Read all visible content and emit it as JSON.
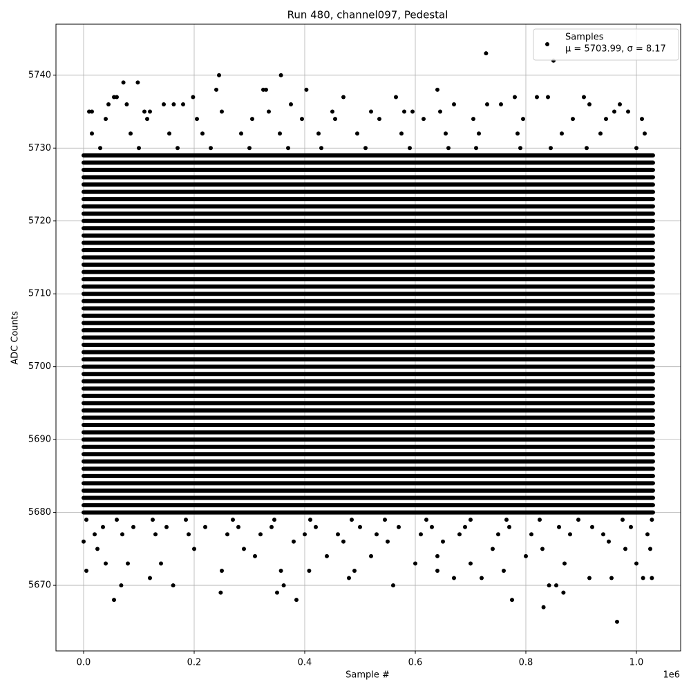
{
  "chart_data": {
    "type": "scatter",
    "title": "Run 480, channel097, Pedestal",
    "x_label": "Sample #",
    "y_label": "ADC Counts",
    "x_offset_label": "1e6",
    "xlim": [
      -50000,
      1080000
    ],
    "ylim": [
      5661,
      5747
    ],
    "xticks": [
      {
        "value": 0,
        "label": "0.0"
      },
      {
        "value": 200000,
        "label": "0.2"
      },
      {
        "value": 400000,
        "label": "0.4"
      },
      {
        "value": 600000,
        "label": "0.6"
      },
      {
        "value": 800000,
        "label": "0.8"
      },
      {
        "value": 1000000,
        "label": "1.0"
      }
    ],
    "yticks": [
      5670,
      5680,
      5690,
      5700,
      5710,
      5720,
      5730,
      5740
    ],
    "grid": true,
    "legend": "upper right",
    "series": [
      {
        "name": "Samples",
        "note": "μ = 5703.99, σ = 8.17",
        "color": "#000000",
        "dense_x": [
          0,
          1030000
        ],
        "dense_y": [
          5680,
          5681,
          5682,
          5683,
          5684,
          5685,
          5686,
          5687,
          5688,
          5689,
          5690,
          5691,
          5692,
          5693,
          5694,
          5695,
          5696,
          5697,
          5698,
          5699,
          5700,
          5701,
          5702,
          5703,
          5704,
          5705,
          5706,
          5707,
          5708,
          5709,
          5710,
          5711,
          5712,
          5713,
          5714,
          5715,
          5716,
          5717,
          5718,
          5719,
          5720,
          5721,
          5722,
          5723,
          5724,
          5725,
          5726,
          5727,
          5728,
          5729
        ],
        "x": [
          728000,
          245000,
          357000,
          72000,
          98000,
          240000,
          325000,
          330000,
          403000,
          640000,
          55000,
          60000,
          198000,
          470000,
          565000,
          780000,
          820000,
          840000,
          905000,
          850000,
          45000,
          78000,
          145000,
          163000,
          180000,
          375000,
          670000,
          730000,
          755000,
          915000,
          970000,
          10000,
          15000,
          110000,
          120000,
          250000,
          335000,
          450000,
          520000,
          580000,
          595000,
          645000,
          960000,
          985000,
          965000,
          832000,
          55000,
          385000,
          775000,
          248000,
          350000,
          868000,
          68000,
          162000,
          362000,
          560000,
          842000,
          855000,
          5000,
          250000,
          357000,
          640000,
          408000,
          490000,
          915000,
          955000,
          1012000,
          1028000,
          120000,
          480000,
          670000,
          720000,
          600000,
          700000,
          760000,
          870000,
          1000000,
          40000,
          80000,
          140000,
          310000,
          440000,
          520000,
          640000,
          800000,
          980000,
          0,
          25000,
          200000,
          290000,
          380000,
          470000,
          550000,
          650000,
          740000,
          830000,
          950000,
          1025000,
          20000,
          70000,
          130000,
          190000,
          260000,
          320000,
          400000,
          460000,
          530000,
          610000,
          680000,
          750000,
          810000,
          880000,
          940000,
          1020000,
          35000,
          90000,
          150000,
          220000,
          280000,
          340000,
          420000,
          500000,
          570000,
          630000,
          690000,
          770000,
          860000,
          920000,
          990000,
          5000,
          60000,
          125000,
          185000,
          270000,
          345000,
          410000,
          485000,
          545000,
          620000,
          700000,
          765000,
          825000,
          895000,
          975000,
          1028000,
          30000,
          100000,
          170000,
          230000,
          300000,
          370000,
          430000,
          510000,
          590000,
          660000,
          710000,
          790000,
          845000,
          910000,
          1000000,
          15000,
          85000,
          155000,
          215000,
          285000,
          355000,
          425000,
          495000,
          575000,
          655000,
          715000,
          785000,
          865000,
          935000,
          1015000,
          40000,
          115000,
          205000,
          305000,
          395000,
          455000,
          535000,
          615000,
          705000,
          795000,
          885000,
          945000,
          1010000
        ],
        "y": [
          5743,
          5740,
          5740,
          5739,
          5739,
          5738,
          5738,
          5738,
          5738,
          5738,
          5737,
          5737,
          5737,
          5737,
          5737,
          5737,
          5737,
          5737,
          5737,
          5742,
          5736,
          5736,
          5736,
          5736,
          5736,
          5736,
          5736,
          5736,
          5736,
          5736,
          5736,
          5735,
          5735,
          5735,
          5735,
          5735,
          5735,
          5735,
          5735,
          5735,
          5735,
          5735,
          5735,
          5735,
          5665,
          5667,
          5668,
          5668,
          5668,
          5669,
          5669,
          5669,
          5670,
          5670,
          5670,
          5670,
          5670,
          5670,
          5672,
          5672,
          5672,
          5672,
          5672,
          5672,
          5671,
          5671,
          5671,
          5671,
          5671,
          5671,
          5671,
          5671,
          5673,
          5673,
          5672,
          5673,
          5673,
          5673,
          5673,
          5673,
          5674,
          5674,
          5674,
          5674,
          5674,
          5675,
          5676,
          5675,
          5675,
          5675,
          5676,
          5676,
          5676,
          5676,
          5675,
          5675,
          5676,
          5675,
          5677,
          5677,
          5677,
          5677,
          5677,
          5677,
          5677,
          5677,
          5677,
          5677,
          5677,
          5677,
          5677,
          5677,
          5677,
          5677,
          5678,
          5678,
          5678,
          5678,
          5678,
          5678,
          5678,
          5678,
          5678,
          5678,
          5678,
          5678,
          5678,
          5678,
          5678,
          5679,
          5679,
          5679,
          5679,
          5679,
          5679,
          5679,
          5679,
          5679,
          5679,
          5679,
          5679,
          5679,
          5679,
          5679,
          5679,
          5730,
          5730,
          5730,
          5730,
          5730,
          5730,
          5730,
          5730,
          5730,
          5730,
          5730,
          5730,
          5730,
          5730,
          5730,
          5732,
          5732,
          5732,
          5732,
          5732,
          5732,
          5732,
          5732,
          5732,
          5732,
          5732,
          5732,
          5732,
          5732,
          5732,
          5734,
          5734,
          5734,
          5734,
          5734,
          5734,
          5734,
          5734,
          5734,
          5734,
          5734,
          5734,
          5734
        ]
      }
    ]
  }
}
